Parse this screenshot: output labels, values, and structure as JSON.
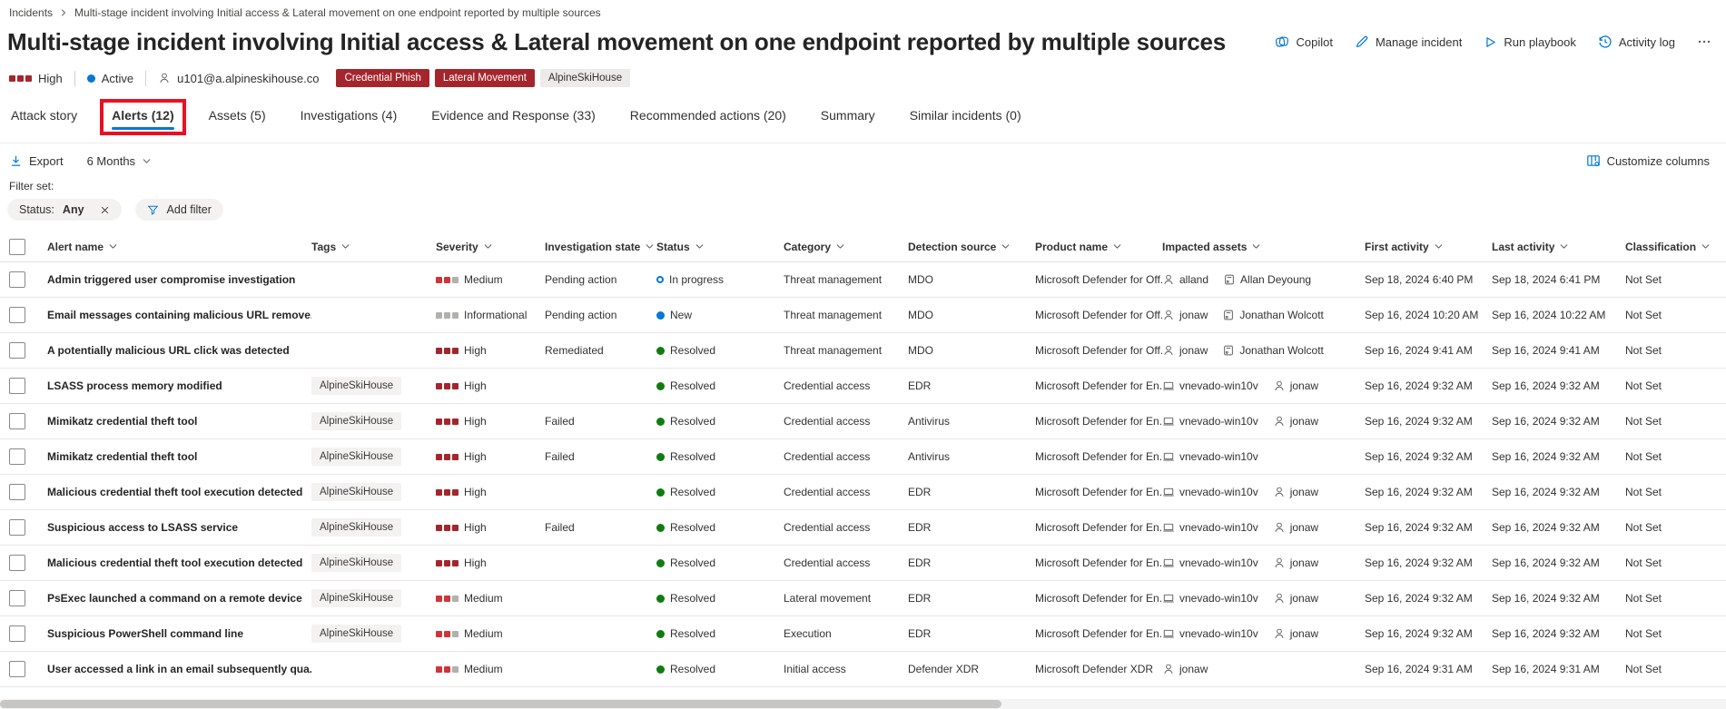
{
  "breadcrumb": {
    "root": "Incidents",
    "current": "Multi-stage incident involving Initial access & Lateral movement on one endpoint reported by multiple sources"
  },
  "header": {
    "title": "Multi-stage incident involving Initial access & Lateral movement on one endpoint reported by multiple sources",
    "actions": [
      {
        "label": "Copilot",
        "icon": "copilot"
      },
      {
        "label": "Manage incident",
        "icon": "pencil"
      },
      {
        "label": "Run playbook",
        "icon": "play"
      },
      {
        "label": "Activity log",
        "icon": "history"
      }
    ],
    "severity_label": "High",
    "status_label": "Active",
    "user_email": "u101@a.alpineskihouse.co",
    "badges": [
      {
        "label": "Credential Phish",
        "style": "red"
      },
      {
        "label": "Lateral Movement",
        "style": "red"
      },
      {
        "label": "AlpineSkiHouse",
        "style": "gray"
      }
    ]
  },
  "tabs": [
    {
      "label": "Attack story",
      "selected": false,
      "annotated": false
    },
    {
      "label": "Alerts (12)",
      "selected": true,
      "annotated": true
    },
    {
      "label": "Assets (5)",
      "selected": false,
      "annotated": false
    },
    {
      "label": "Investigations (4)",
      "selected": false,
      "annotated": false
    },
    {
      "label": "Evidence and Response (33)",
      "selected": false,
      "annotated": false
    },
    {
      "label": "Recommended actions (20)",
      "selected": false,
      "annotated": false
    },
    {
      "label": "Summary",
      "selected": false,
      "annotated": false
    },
    {
      "label": "Similar incidents (0)",
      "selected": false,
      "annotated": false
    }
  ],
  "toolbar": {
    "export_label": "Export",
    "range_label": "6 Months",
    "customize_label": "Customize columns"
  },
  "filters": {
    "title": "Filter set:",
    "status_name": "Status:",
    "status_value": "Any",
    "add_filter_label": "Add filter"
  },
  "table": {
    "columns": [
      "Alert name",
      "Tags",
      "Severity",
      "Investigation state",
      "Status",
      "Category",
      "Detection source",
      "Product name",
      "Impacted assets",
      "First activity",
      "Last activity",
      "Classification"
    ],
    "rows": [
      {
        "name": "Admin triggered user compromise investigation",
        "tag": "",
        "severity": {
          "label": "Medium",
          "filled": 2
        },
        "investigation_state": "Pending action",
        "status": {
          "label": "In progress",
          "kind": "in-progress"
        },
        "category": "Threat management",
        "detection_source": "MDO",
        "product_name": "Microsoft Defender for Off...",
        "assets": [
          {
            "type": "user",
            "label": "alland"
          },
          {
            "type": "mailbox",
            "label": "Allan Deyoung"
          }
        ],
        "first_activity": "Sep 18, 2024 6:40 PM",
        "last_activity": "Sep 18, 2024 6:41 PM",
        "classification": "Not Set"
      },
      {
        "name": "Email messages containing malicious URL remove...",
        "tag": "",
        "severity": {
          "label": "Informational",
          "filled": 0
        },
        "investigation_state": "Pending action",
        "status": {
          "label": "New",
          "kind": "new"
        },
        "category": "Threat management",
        "detection_source": "MDO",
        "product_name": "Microsoft Defender for Off...",
        "assets": [
          {
            "type": "user",
            "label": "jonaw"
          },
          {
            "type": "mailbox",
            "label": "Jonathan Wolcott"
          }
        ],
        "first_activity": "Sep 16, 2024 10:20 AM",
        "last_activity": "Sep 16, 2024 10:22 AM",
        "classification": "Not Set"
      },
      {
        "name": "A potentially malicious URL click was detected",
        "tag": "",
        "severity": {
          "label": "High",
          "filled": 3
        },
        "investigation_state": "Remediated",
        "status": {
          "label": "Resolved",
          "kind": "resolved"
        },
        "category": "Threat management",
        "detection_source": "MDO",
        "product_name": "Microsoft Defender for Off...",
        "assets": [
          {
            "type": "user",
            "label": "jonaw"
          },
          {
            "type": "mailbox",
            "label": "Jonathan Wolcott"
          }
        ],
        "first_activity": "Sep 16, 2024 9:41 AM",
        "last_activity": "Sep 16, 2024 9:41 AM",
        "classification": "Not Set"
      },
      {
        "name": "LSASS process memory modified",
        "tag": "AlpineSkiHouse",
        "severity": {
          "label": "High",
          "filled": 3
        },
        "investigation_state": "",
        "status": {
          "label": "Resolved",
          "kind": "resolved"
        },
        "category": "Credential access",
        "detection_source": "EDR",
        "product_name": "Microsoft Defender for En...",
        "assets": [
          {
            "type": "device",
            "label": "vnevado-win10v"
          },
          {
            "type": "user",
            "label": "jonaw"
          }
        ],
        "first_activity": "Sep 16, 2024 9:32 AM",
        "last_activity": "Sep 16, 2024 9:32 AM",
        "classification": "Not Set"
      },
      {
        "name": "Mimikatz credential theft tool",
        "tag": "AlpineSkiHouse",
        "severity": {
          "label": "High",
          "filled": 3
        },
        "investigation_state": "Failed",
        "status": {
          "label": "Resolved",
          "kind": "resolved"
        },
        "category": "Credential access",
        "detection_source": "Antivirus",
        "product_name": "Microsoft Defender for En...",
        "assets": [
          {
            "type": "device",
            "label": "vnevado-win10v"
          },
          {
            "type": "user",
            "label": "jonaw"
          }
        ],
        "first_activity": "Sep 16, 2024 9:32 AM",
        "last_activity": "Sep 16, 2024 9:32 AM",
        "classification": "Not Set"
      },
      {
        "name": "Mimikatz credential theft tool",
        "tag": "AlpineSkiHouse",
        "severity": {
          "label": "High",
          "filled": 3
        },
        "investigation_state": "Failed",
        "status": {
          "label": "Resolved",
          "kind": "resolved"
        },
        "category": "Credential access",
        "detection_source": "Antivirus",
        "product_name": "Microsoft Defender for En...",
        "assets": [
          {
            "type": "device",
            "label": "vnevado-win10v"
          }
        ],
        "first_activity": "Sep 16, 2024 9:32 AM",
        "last_activity": "Sep 16, 2024 9:32 AM",
        "classification": "Not Set"
      },
      {
        "name": "Malicious credential theft tool execution detected",
        "tag": "AlpineSkiHouse",
        "severity": {
          "label": "High",
          "filled": 3
        },
        "investigation_state": "",
        "status": {
          "label": "Resolved",
          "kind": "resolved"
        },
        "category": "Credential access",
        "detection_source": "EDR",
        "product_name": "Microsoft Defender for En...",
        "assets": [
          {
            "type": "device",
            "label": "vnevado-win10v"
          },
          {
            "type": "user",
            "label": "jonaw"
          }
        ],
        "first_activity": "Sep 16, 2024 9:32 AM",
        "last_activity": "Sep 16, 2024 9:32 AM",
        "classification": "Not Set"
      },
      {
        "name": "Suspicious access to LSASS service",
        "tag": "AlpineSkiHouse",
        "severity": {
          "label": "High",
          "filled": 3
        },
        "investigation_state": "Failed",
        "status": {
          "label": "Resolved",
          "kind": "resolved"
        },
        "category": "Credential access",
        "detection_source": "EDR",
        "product_name": "Microsoft Defender for En...",
        "assets": [
          {
            "type": "device",
            "label": "vnevado-win10v"
          },
          {
            "type": "user",
            "label": "jonaw"
          }
        ],
        "first_activity": "Sep 16, 2024 9:32 AM",
        "last_activity": "Sep 16, 2024 9:32 AM",
        "classification": "Not Set"
      },
      {
        "name": "Malicious credential theft tool execution detected",
        "tag": "AlpineSkiHouse",
        "severity": {
          "label": "High",
          "filled": 3
        },
        "investigation_state": "",
        "status": {
          "label": "Resolved",
          "kind": "resolved"
        },
        "category": "Credential access",
        "detection_source": "EDR",
        "product_name": "Microsoft Defender for En...",
        "assets": [
          {
            "type": "device",
            "label": "vnevado-win10v"
          },
          {
            "type": "user",
            "label": "jonaw"
          }
        ],
        "first_activity": "Sep 16, 2024 9:32 AM",
        "last_activity": "Sep 16, 2024 9:32 AM",
        "classification": "Not Set"
      },
      {
        "name": "PsExec launched a command on a remote device",
        "tag": "AlpineSkiHouse",
        "severity": {
          "label": "Medium",
          "filled": 2
        },
        "investigation_state": "",
        "status": {
          "label": "Resolved",
          "kind": "resolved"
        },
        "category": "Lateral movement",
        "detection_source": "EDR",
        "product_name": "Microsoft Defender for En...",
        "assets": [
          {
            "type": "device",
            "label": "vnevado-win10v"
          },
          {
            "type": "user",
            "label": "jonaw"
          }
        ],
        "first_activity": "Sep 16, 2024 9:32 AM",
        "last_activity": "Sep 16, 2024 9:32 AM",
        "classification": "Not Set"
      },
      {
        "name": "Suspicious PowerShell command line",
        "tag": "AlpineSkiHouse",
        "severity": {
          "label": "Medium",
          "filled": 2
        },
        "investigation_state": "",
        "status": {
          "label": "Resolved",
          "kind": "resolved"
        },
        "category": "Execution",
        "detection_source": "EDR",
        "product_name": "Microsoft Defender for En...",
        "assets": [
          {
            "type": "device",
            "label": "vnevado-win10v"
          },
          {
            "type": "user",
            "label": "jonaw"
          }
        ],
        "first_activity": "Sep 16, 2024 9:32 AM",
        "last_activity": "Sep 16, 2024 9:32 AM",
        "classification": "Not Set"
      },
      {
        "name": "User accessed a link in an email subsequently qua...",
        "tag": "",
        "severity": {
          "label": "Medium",
          "filled": 2
        },
        "investigation_state": "",
        "status": {
          "label": "Resolved",
          "kind": "resolved"
        },
        "category": "Initial access",
        "detection_source": "Defender XDR",
        "product_name": "Microsoft Defender XDR",
        "assets": [
          {
            "type": "user",
            "label": "jonaw"
          }
        ],
        "first_activity": "Sep 16, 2024 9:31 AM",
        "last_activity": "Sep 16, 2024 9:31 AM",
        "classification": "Not Set"
      }
    ]
  },
  "colors": {
    "accent": "#0078d4",
    "severity_high": "#a4262c",
    "severity_medium": "#d13438",
    "severity_neutral": "#b3b0ad",
    "status_resolved": "#107c10",
    "badge_red": "#a4262c",
    "annotation_red": "#e81123"
  }
}
